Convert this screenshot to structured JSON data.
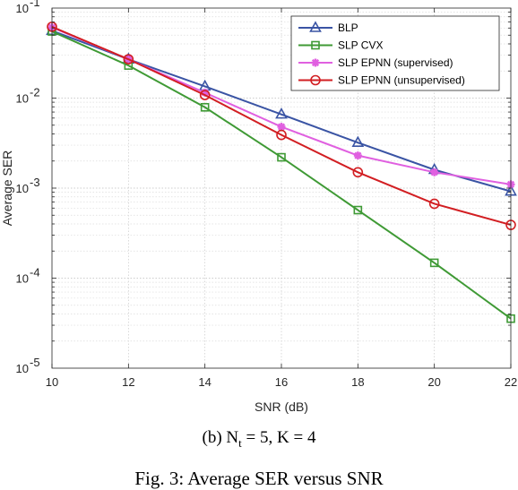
{
  "chart_data": {
    "type": "line",
    "xlabel": "SNR (dB)",
    "ylabel": "Average SER",
    "x": [
      10,
      12,
      14,
      16,
      18,
      20,
      22
    ],
    "xlim": [
      10,
      22
    ],
    "xticks": [
      "10",
      "12",
      "14",
      "16",
      "18",
      "20",
      "22"
    ],
    "ylim": [
      1e-05,
      0.1
    ],
    "yscale": "log",
    "yticks": [
      {
        "value": 0.1,
        "base": "10",
        "exp": "-1"
      },
      {
        "value": 0.01,
        "base": "10",
        "exp": "-2"
      },
      {
        "value": 0.001,
        "base": "10",
        "exp": "-3"
      },
      {
        "value": 0.0001,
        "base": "10",
        "exp": "-4"
      },
      {
        "value": 1e-05,
        "base": "10",
        "exp": "-5"
      }
    ],
    "grid": true,
    "legend_position": "top-right",
    "series": [
      {
        "name": "BLP",
        "color": "#3a54a4",
        "marker": "triangle",
        "values": [
          0.056,
          0.027,
          0.0135,
          0.0066,
          0.0032,
          0.0016,
          0.00092
        ]
      },
      {
        "name": "SLP CVX",
        "color": "#3f9a35",
        "marker": "square",
        "values": [
          0.055,
          0.023,
          0.0079,
          0.0022,
          0.00057,
          0.000148,
          3.55e-05
        ]
      },
      {
        "name": "SLP EPNN (supervised)",
        "color": "#e060e0",
        "marker": "star",
        "values": [
          0.061,
          0.027,
          0.0115,
          0.0048,
          0.0023,
          0.0015,
          0.0011
        ]
      },
      {
        "name": "SLP EPNN (unsupervised)",
        "color": "#d21e22",
        "marker": "circle",
        "values": [
          0.062,
          0.027,
          0.0108,
          0.0039,
          0.0015,
          0.00067,
          0.00039
        ]
      }
    ]
  },
  "captions": {
    "sub": "(b) N",
    "sub_n_sub": "t",
    "sub_rest": " = 5, K = 4",
    "figure": "Fig. 3: Average SER versus SNR"
  }
}
